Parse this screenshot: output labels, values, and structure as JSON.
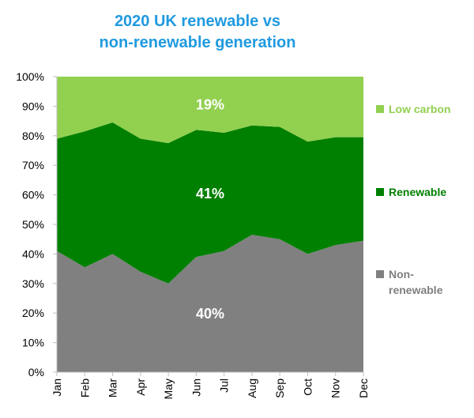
{
  "chart_data": {
    "type": "stacked_area",
    "title": [
      "2020 UK renewable vs",
      "non-renewable generation"
    ],
    "categories": [
      "Jan",
      "Feb",
      "Mar",
      "Apr",
      "May",
      "Jun",
      "Jul",
      "Aug",
      "Sep",
      "Oct",
      "Nov",
      "Dec"
    ],
    "series": [
      {
        "name": "Non-renewable",
        "color": "#808080",
        "values": [
          41,
          35.5,
          40,
          34,
          30,
          39,
          41,
          46.5,
          45,
          40,
          43,
          44.5
        ]
      },
      {
        "name": "Renewable",
        "color": "#008000",
        "values": [
          38,
          46,
          44.5,
          45,
          47.5,
          43,
          40,
          37,
          38,
          38,
          36.5,
          35
        ]
      },
      {
        "name": "Low carbon",
        "color": "#92d050",
        "values": [
          21,
          18.5,
          15.5,
          21,
          22.5,
          18,
          19,
          16.5,
          17,
          22,
          20.5,
          20.5
        ]
      }
    ],
    "annotations": [
      "40%",
      "41%",
      "19%"
    ],
    "ylim": [
      0,
      100
    ],
    "yticks": [
      {
        "value": 0,
        "label": "0%"
      },
      {
        "value": 10,
        "label": "10%"
      },
      {
        "value": 20,
        "label": "20%"
      },
      {
        "value": 30,
        "label": "30%"
      },
      {
        "value": 40,
        "label": "40%"
      },
      {
        "value": 50,
        "label": "50%"
      },
      {
        "value": 60,
        "label": "60%"
      },
      {
        "value": 70,
        "label": "70%"
      },
      {
        "value": 80,
        "label": "80%"
      },
      {
        "value": 90,
        "label": "90%"
      },
      {
        "value": 100,
        "label": "100%"
      }
    ],
    "legend": "right"
  }
}
